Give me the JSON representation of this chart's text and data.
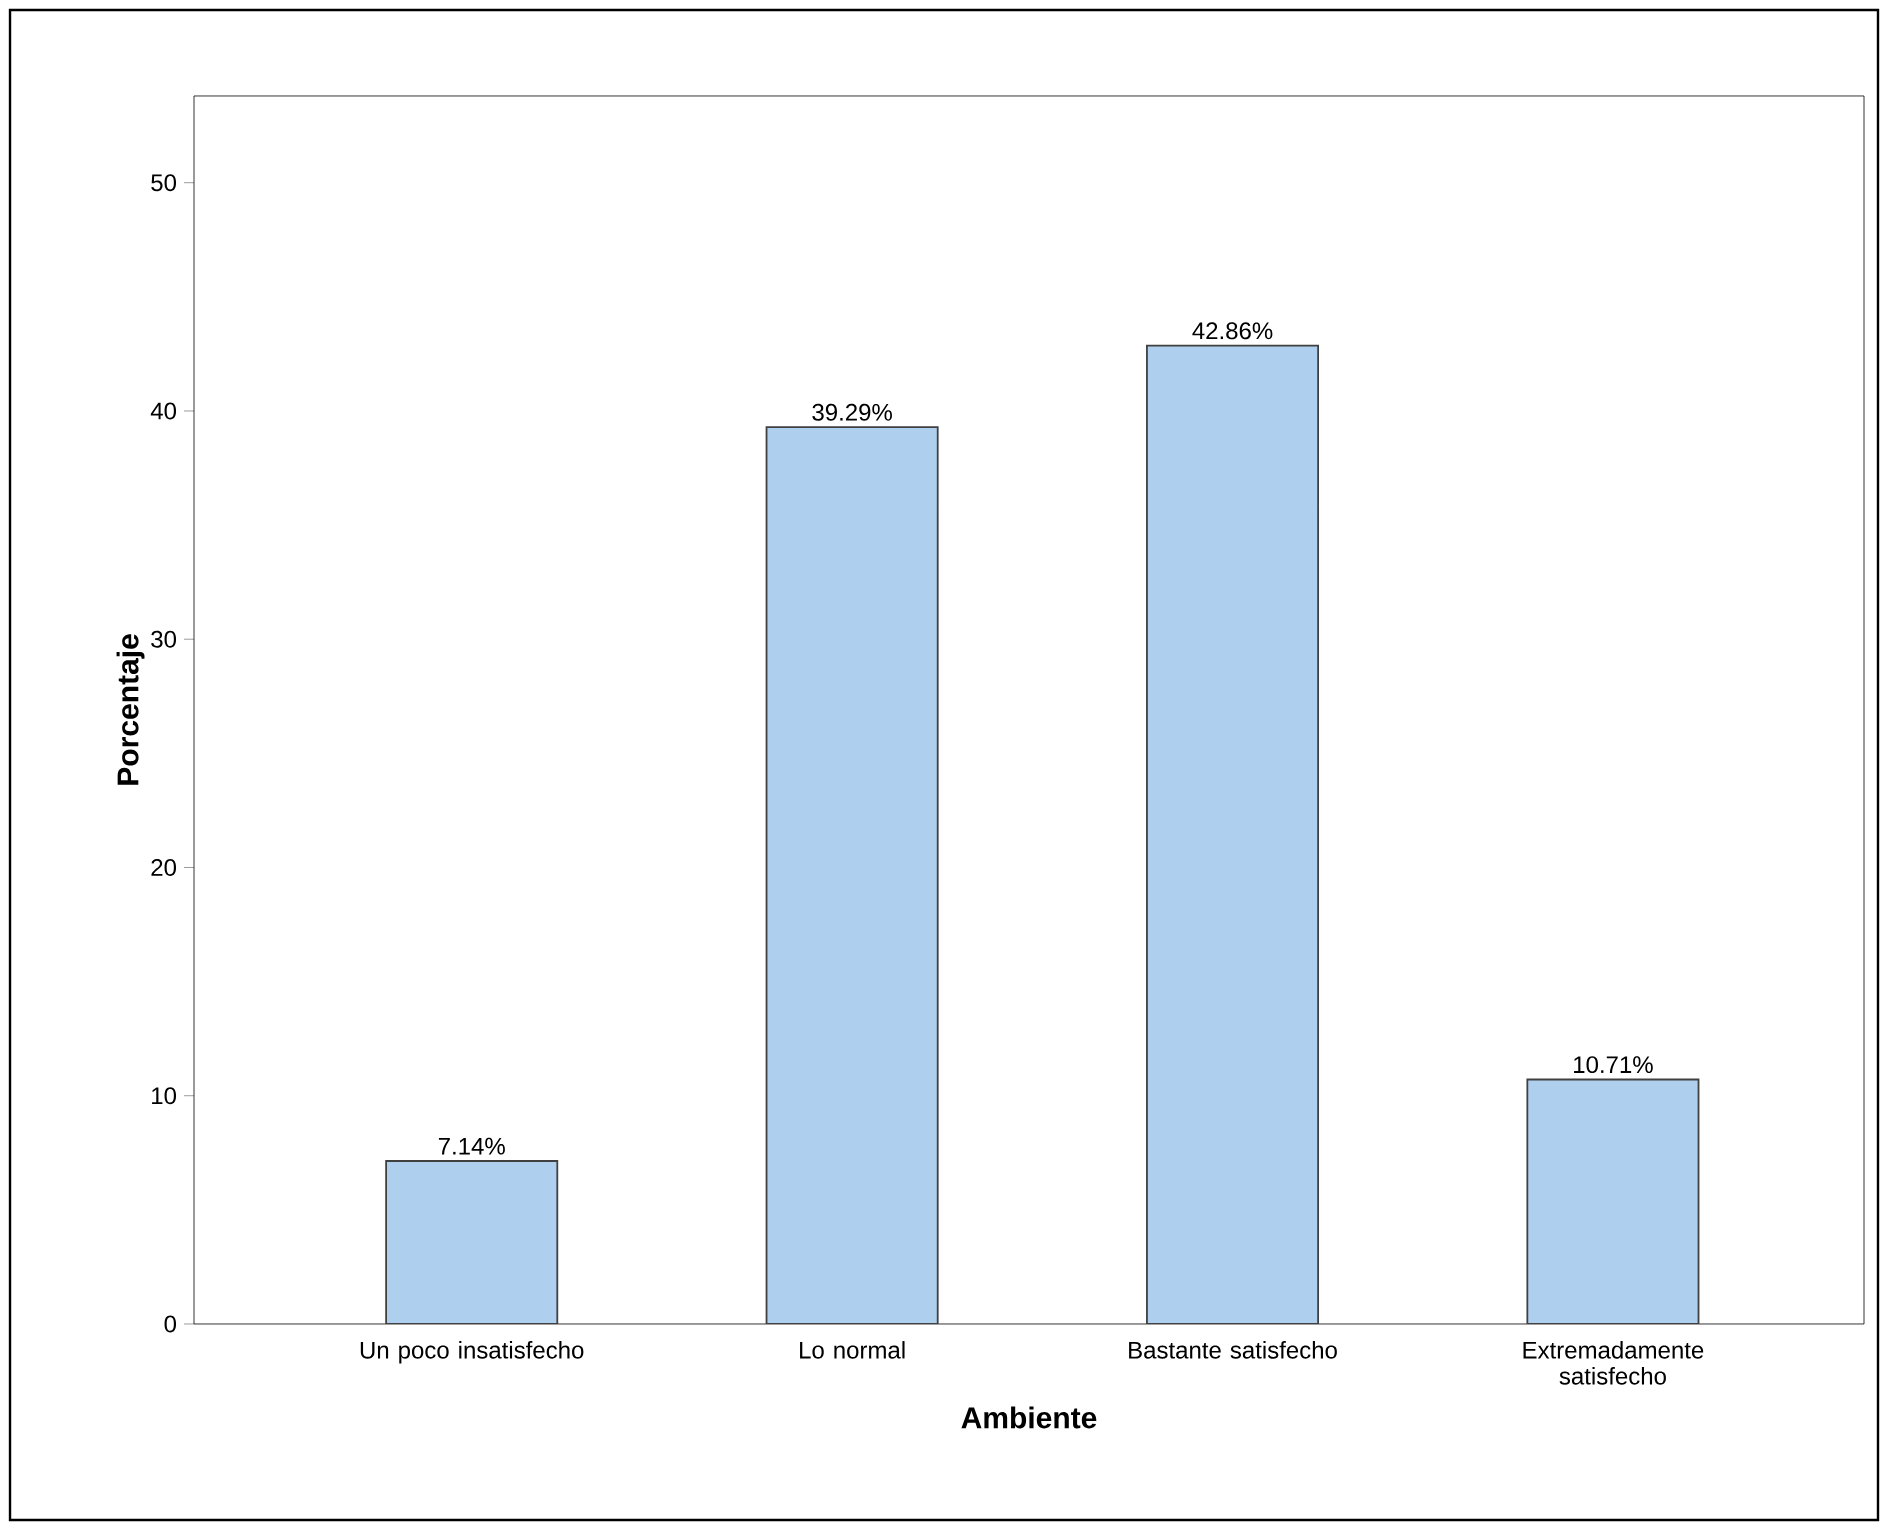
{
  "chart_data": {
    "type": "bar",
    "xlabel": "Ambiente",
    "ylabel": "Porcentaje",
    "categories": [
      "Un poco insatisfecho",
      "Lo normal",
      "Bastante satisfecho",
      "Extremadamente satisfecho"
    ],
    "values": [
      7.14,
      39.29,
      42.86,
      10.71
    ],
    "value_labels": [
      "7.14%",
      "39.29%",
      "42.86%",
      "10.71%"
    ],
    "color": "#aecfed",
    "ylim": [
      0,
      53.8
    ],
    "yticks": [
      0,
      10,
      20,
      30,
      40,
      50
    ]
  }
}
